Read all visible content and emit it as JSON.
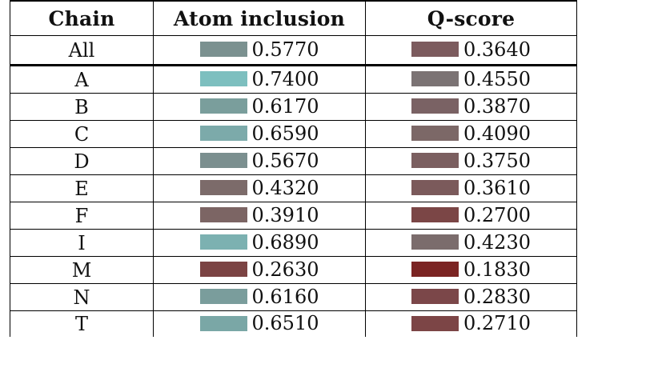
{
  "headers": {
    "chain": "Chain",
    "atom_inclusion": "Atom inclusion",
    "qscore": "Q-score"
  },
  "rows": [
    {
      "chain": "All",
      "atom_inclusion": "0.5770",
      "atom_color": "#7b9190",
      "qscore": "0.3640",
      "q_color": "#7c5b5e"
    },
    {
      "chain": "A",
      "atom_inclusion": "0.7400",
      "atom_color": "#7dbfbf",
      "qscore": "0.4550",
      "q_color": "#7b7374"
    },
    {
      "chain": "B",
      "atom_inclusion": "0.6170",
      "atom_color": "#7a9e9c",
      "qscore": "0.3870",
      "q_color": "#7a6264"
    },
    {
      "chain": "C",
      "atom_inclusion": "0.6590",
      "atom_color": "#7caaaa",
      "qscore": "0.4090",
      "q_color": "#7c6867"
    },
    {
      "chain": "D",
      "atom_inclusion": "0.5670",
      "atom_color": "#7b8f8f",
      "qscore": "0.3750",
      "q_color": "#7b5f60"
    },
    {
      "chain": "E",
      "atom_inclusion": "0.4320",
      "atom_color": "#7c6b6a",
      "qscore": "0.3610",
      "q_color": "#7b5a5b"
    },
    {
      "chain": "F",
      "atom_inclusion": "0.3910",
      "atom_color": "#7c6564",
      "qscore": "0.2700",
      "q_color": "#7b4646"
    },
    {
      "chain": "I",
      "atom_inclusion": "0.6890",
      "atom_color": "#7cb1b1",
      "qscore": "0.4230",
      "q_color": "#7b6c6c"
    },
    {
      "chain": "M",
      "atom_inclusion": "0.2630",
      "atom_color": "#7b4343",
      "qscore": "0.1830",
      "q_color": "#7b2423"
    },
    {
      "chain": "N",
      "atom_inclusion": "0.6160",
      "atom_color": "#7a9d9c",
      "qscore": "0.2830",
      "q_color": "#7b4749"
    },
    {
      "chain": "T",
      "atom_inclusion": "0.6510",
      "atom_color": "#7aa7a6",
      "qscore": "0.2710",
      "q_color": "#7c4546"
    }
  ]
}
